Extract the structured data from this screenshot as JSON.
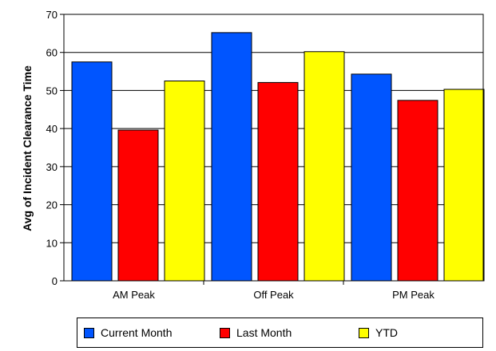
{
  "chart_data": {
    "type": "bar",
    "title": "",
    "xlabel": "",
    "ylabel": "Avg of Incident Clearance Time",
    "ylim": [
      0,
      70
    ],
    "yticks": [
      0,
      10,
      20,
      30,
      40,
      50,
      60,
      70
    ],
    "grid": true,
    "legend_position": "bottom",
    "categories": [
      "AM Peak",
      "Off Peak",
      "PM Peak"
    ],
    "series": [
      {
        "name": "Current Month",
        "color": "#0055ff",
        "values": [
          57.5,
          65.2,
          54.3
        ]
      },
      {
        "name": "Last Month",
        "color": "#ff0000",
        "values": [
          39.6,
          52.1,
          47.4
        ]
      },
      {
        "name": "YTD",
        "color": "#ffff00",
        "values": [
          52.5,
          60.2,
          50.3
        ]
      }
    ]
  }
}
